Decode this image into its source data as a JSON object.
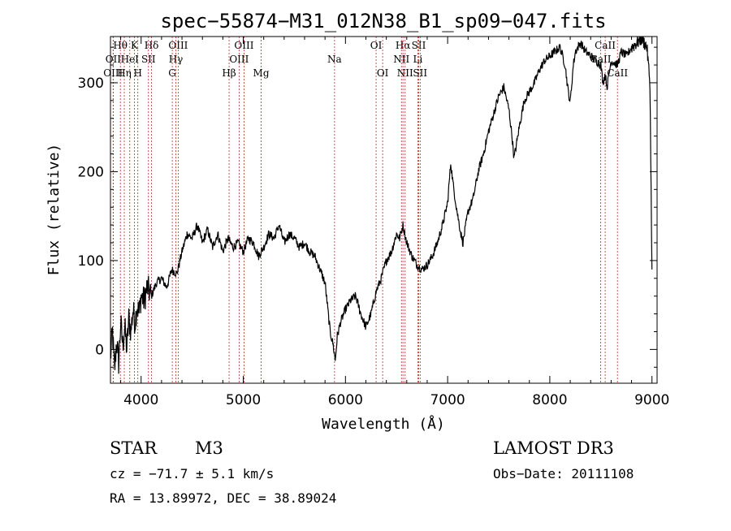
{
  "chart_data": {
    "type": "line",
    "title": "spec−55874−M31_012N38_B1_sp09−047.fits",
    "xlabel": "Wavelength (Å)",
    "ylabel": "Flux (relative)",
    "xlim": [
      3700,
      9050
    ],
    "ylim": [
      -38,
      352
    ],
    "xticks": [
      4000,
      5000,
      6000,
      7000,
      8000,
      9000
    ],
    "yticks": [
      0,
      100,
      200,
      300
    ],
    "xtick_labels": [
      "4000",
      "5000",
      "6000",
      "7000",
      "8000",
      "9000"
    ],
    "ytick_labels": [
      "0",
      "100",
      "200",
      "300"
    ],
    "grid": false,
    "line_color": "#000000",
    "marker_color": "#cc2222",
    "series": [
      {
        "x": [
          3700,
          3720,
          3740,
          3760,
          3780,
          3800,
          3820,
          3840,
          3860,
          3880,
          3900,
          3920,
          3940,
          3960,
          3980,
          4000,
          4030,
          4060,
          4100,
          4150,
          4200,
          4250,
          4300,
          4350,
          4400,
          4450,
          4500,
          4550,
          4600,
          4650,
          4700,
          4750,
          4800,
          4850,
          4900,
          4950,
          5000,
          5050,
          5100,
          5150,
          5200,
          5250,
          5300,
          5350,
          5400,
          5450,
          5500,
          5550,
          5600,
          5650,
          5700,
          5750,
          5800,
          5850,
          5880,
          5900,
          5920,
          5950,
          6000,
          6050,
          6100,
          6150,
          6200,
          6250,
          6300,
          6350,
          6400,
          6450,
          6500,
          6530,
          6563,
          6600,
          6650,
          6700,
          6750,
          6800,
          6850,
          6900,
          6950,
          7000,
          7030,
          7060,
          7100,
          7130,
          7150,
          7200,
          7250,
          7300,
          7350,
          7400,
          7450,
          7500,
          7550,
          7600,
          7630,
          7650,
          7680,
          7700,
          7750,
          7800,
          7850,
          7900,
          7950,
          8000,
          8050,
          8100,
          8150,
          8180,
          8200,
          8230,
          8250,
          8300,
          8350,
          8400,
          8450,
          8500,
          8520,
          8542,
          8560,
          8600,
          8662,
          8700,
          8750,
          8800,
          8850,
          8900,
          8950,
          8980,
          9000
        ],
        "y": [
          -10,
          20,
          -25,
          10,
          -15,
          30,
          5,
          25,
          0,
          35,
          20,
          45,
          30,
          50,
          40,
          60,
          55,
          70,
          60,
          75,
          80,
          70,
          90,
          85,
          110,
          130,
          125,
          140,
          120,
          135,
          115,
          130,
          110,
          125,
          115,
          120,
          110,
          125,
          120,
          105,
          115,
          130,
          125,
          140,
          120,
          130,
          125,
          115,
          120,
          110,
          105,
          90,
          75,
          20,
          5,
          -12,
          15,
          30,
          45,
          55,
          60,
          40,
          25,
          40,
          65,
          80,
          100,
          110,
          130,
          125,
          140,
          120,
          105,
          95,
          90,
          95,
          105,
          120,
          140,
          165,
          210,
          180,
          150,
          130,
          120,
          155,
          170,
          200,
          220,
          245,
          265,
          285,
          295,
          270,
          240,
          215,
          235,
          250,
          280,
          290,
          300,
          315,
          325,
          330,
          335,
          340,
          320,
          290,
          278,
          320,
          335,
          345,
          335,
          330,
          325,
          320,
          300,
          310,
          295,
          325,
          320,
          335,
          330,
          340,
          345,
          350,
          340,
          300,
          90
        ]
      }
    ],
    "lines": [
      {
        "label": "Hθ",
        "wl": 3797,
        "row": 0
      },
      {
        "label": "K",
        "wl": 3934,
        "row": 0
      },
      {
        "label": "Hδ",
        "wl": 4102,
        "row": 0
      },
      {
        "label": "OIII",
        "wl": 4363,
        "row": 0
      },
      {
        "label": "OIII",
        "wl": 5007,
        "row": 0
      },
      {
        "label": "OI",
        "wl": 6300,
        "row": 0
      },
      {
        "label": "Hα",
        "wl": 6563,
        "row": 0
      },
      {
        "label": "SII",
        "wl": 6717,
        "row": 0
      },
      {
        "label": "CaII",
        "wl": 8542,
        "row": 0
      },
      {
        "label": "OII",
        "wl": 3727,
        "row": 1
      },
      {
        "label": "HeI",
        "wl": 3889,
        "row": 1
      },
      {
        "label": "SII",
        "wl": 4072,
        "row": 1
      },
      {
        "label": "Hγ",
        "wl": 4340,
        "row": 1
      },
      {
        "label": "OIII",
        "wl": 4959,
        "row": 1
      },
      {
        "label": "Na",
        "wl": 5893,
        "row": 1
      },
      {
        "label": "NII",
        "wl": 6548,
        "row": 1
      },
      {
        "label": "Li",
        "wl": 6708,
        "row": 1
      },
      {
        "label": "CaII",
        "wl": 8498,
        "row": 1
      },
      {
        "label": "OIII",
        "wl": 3726,
        "row": 2
      },
      {
        "label": "Hη",
        "wl": 3835,
        "row": 2
      },
      {
        "label": "H",
        "wl": 3968,
        "row": 2
      },
      {
        "label": "G",
        "wl": 4305,
        "row": 2
      },
      {
        "label": "Hβ",
        "wl": 4861,
        "row": 2
      },
      {
        "label": "Mg",
        "wl": 5175,
        "row": 2
      },
      {
        "label": "OI",
        "wl": 6364,
        "row": 2
      },
      {
        "label": "NII",
        "wl": 6584,
        "row": 2
      },
      {
        "label": "SII",
        "wl": 6731,
        "row": 2
      },
      {
        "label": "CaII",
        "wl": 8662,
        "row": 2
      }
    ]
  },
  "info": {
    "class": "STAR",
    "subclass": "M3",
    "survey": "LAMOST DR3",
    "cz": "cz = −71.7 ± 5.1 km/s",
    "obs_date": "Obs−Date: 20111108",
    "coords": "RA =  13.89972, DEC =  38.89024"
  }
}
